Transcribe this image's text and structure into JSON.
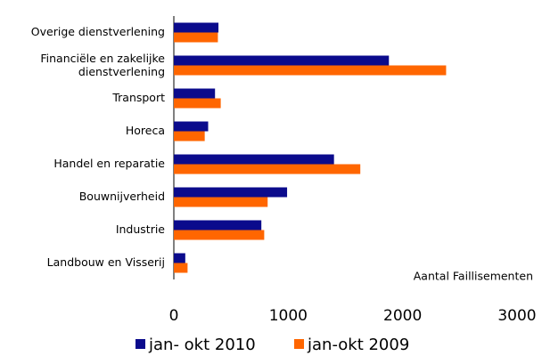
{
  "chart_data": {
    "type": "barh",
    "categories": [
      "Overige dienstverlening",
      "Financiële en zakelijke\ndienstverlening",
      "Transport",
      "Horeca",
      "Handel en reparatie",
      "Bouwnijverheid",
      "Industrie",
      "Landbouw en Visserij"
    ],
    "series": [
      {
        "name": "jan- okt 2010",
        "color": "#0b0b8c",
        "values": [
          390,
          1880,
          360,
          300,
          1400,
          990,
          765,
          100
        ]
      },
      {
        "name": "jan-okt 2009",
        "color": "#ff6600",
        "values": [
          385,
          2380,
          410,
          270,
          1630,
          820,
          790,
          120
        ]
      }
    ],
    "xlim": [
      0,
      3000
    ],
    "xticks": [
      0,
      1000,
      2000,
      3000
    ],
    "annotation": "Aantal Faillisementen"
  }
}
